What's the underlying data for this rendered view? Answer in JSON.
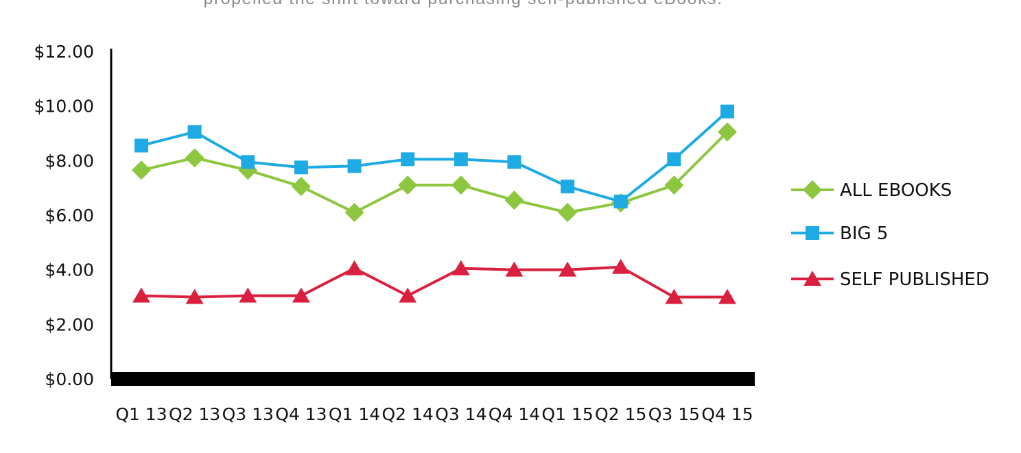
{
  "caption": "propelled the shift toward purchasing self-published eBooks.",
  "chart_data": {
    "type": "line",
    "title": "",
    "xlabel": "",
    "ylabel": "",
    "categories": [
      "Q1 13",
      "Q2 13",
      "Q3 13",
      "Q4 13",
      "Q1 14",
      "Q2 14",
      "Q3 14",
      "Q4 14",
      "Q1 15",
      "Q2 15",
      "Q3 15",
      "Q4 15"
    ],
    "ylim": [
      0,
      12
    ],
    "yticks": [
      0,
      2,
      4,
      6,
      8,
      10,
      12
    ],
    "ytick_labels": [
      "$0.00",
      "$2.00",
      "$4.00",
      "$6.00",
      "$8.00",
      "$10.00",
      "$12.00"
    ],
    "grid": false,
    "legend_position": "right",
    "series": [
      {
        "name": "ALL EBOOKS",
        "color": "#8dc63f",
        "marker": "diamond",
        "values": [
          7.65,
          8.1,
          7.65,
          7.05,
          6.1,
          7.1,
          7.1,
          6.55,
          6.1,
          6.45,
          7.1,
          9.05
        ]
      },
      {
        "name": "BIG 5",
        "color": "#1eaae3",
        "marker": "square",
        "values": [
          8.55,
          9.05,
          7.95,
          7.75,
          7.8,
          8.05,
          8.05,
          7.95,
          7.05,
          6.5,
          8.05,
          9.8
        ]
      },
      {
        "name": "SELF PUBLISHED",
        "color": "#d9213f",
        "marker": "triangle",
        "values": [
          3.05,
          3.0,
          3.05,
          3.05,
          4.05,
          3.05,
          4.05,
          4.0,
          4.0,
          4.1,
          3.0,
          3.0
        ]
      }
    ]
  }
}
